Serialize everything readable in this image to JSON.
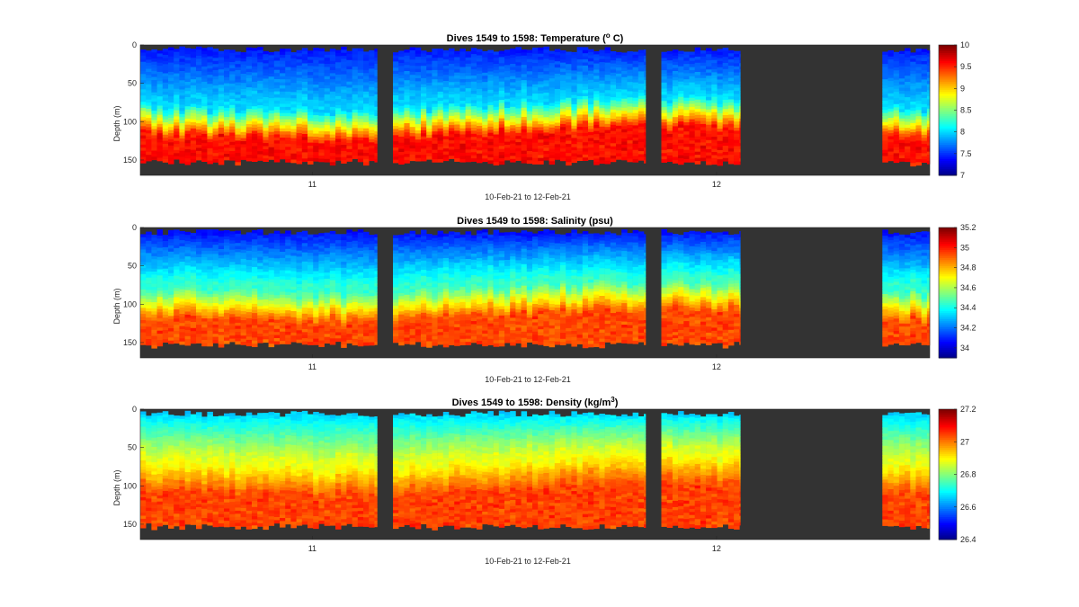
{
  "chart_data": [
    {
      "type": "heatmap",
      "title": "Dives 1549 to 1598: Temperature (",
      "title_sup": "o",
      "title_tail": " C)",
      "xlabel": "10-Feb-21 to 12-Feb-21",
      "ylabel": "Depth (m)",
      "x_ticks": [
        "11",
        "12"
      ],
      "y_ticks": [
        "0",
        "50",
        "100",
        "150"
      ],
      "ylim": [
        0,
        170
      ],
      "colorbar": {
        "min": 7,
        "max": 10,
        "ticks": [
          "10",
          "9.5",
          "9",
          "8.5",
          "8",
          "7.5",
          "7"
        ]
      },
      "profile": {
        "surface": 7.4,
        "thermocline_depth": 100,
        "bottom": 9.6,
        "mid": 8.0
      },
      "colormap": "jet",
      "background": "#333333"
    },
    {
      "type": "heatmap",
      "title": "Dives 1549 to 1598: Salinity (psu)",
      "title_sup": "",
      "title_tail": "",
      "xlabel": "10-Feb-21 to 12-Feb-21",
      "ylabel": "Depth (m)",
      "x_ticks": [
        "11",
        "12"
      ],
      "y_ticks": [
        "0",
        "50",
        "100",
        "150"
      ],
      "ylim": [
        0,
        170
      ],
      "colorbar": {
        "min": 33.9,
        "max": 35.2,
        "ticks": [
          "35.2",
          "35",
          "34.8",
          "34.6",
          "34.4",
          "34.2",
          "34"
        ]
      },
      "profile": {
        "surface": 34.05,
        "thermocline_depth": 100,
        "bottom": 34.95,
        "mid": 34.45
      },
      "colormap": "jet",
      "background": "#333333"
    },
    {
      "type": "heatmap",
      "title": "Dives 1549 to 1598: Density (kg/m",
      "title_sup": "3",
      "title_tail": ")",
      "xlabel": "10-Feb-21 to 12-Feb-21",
      "ylabel": "Depth (m)",
      "x_ticks": [
        "11",
        "12"
      ],
      "y_ticks": [
        "0",
        "50",
        "100",
        "150"
      ],
      "ylim": [
        0,
        170
      ],
      "colorbar": {
        "min": 26.4,
        "max": 27.2,
        "ticks": [
          "27.2",
          "27",
          "26.8",
          "26.6",
          "26.4"
        ]
      },
      "profile": {
        "surface": 26.65,
        "thermocline_depth": 90,
        "bottom": 27.05,
        "mid": 26.88
      },
      "colormap": "jet",
      "background": "#333333"
    }
  ],
  "time_axis": {
    "start": "10-Feb-21",
    "end": "12-Feb-21",
    "data_segments": [
      {
        "from_frac": 0.0,
        "to_frac": 0.3
      },
      {
        "from_frac": 0.32,
        "to_frac": 0.64
      },
      {
        "from_frac": 0.66,
        "to_frac": 0.76
      },
      {
        "from_frac": 0.94,
        "to_frac": 1.0
      }
    ],
    "tick_fracs": [
      0.218,
      0.73
    ]
  }
}
